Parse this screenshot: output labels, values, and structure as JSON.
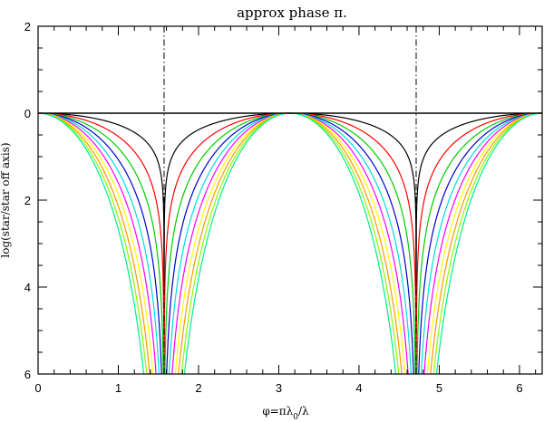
{
  "chart_data": {
    "type": "line",
    "title": "approx phase π.",
    "xlabel": "φ=πλ0/λ",
    "xlabel_parts": {
      "main": "φ=πλ",
      "sub": "0",
      "tail": "/λ"
    },
    "ylabel": "log(star/star off axis)",
    "xlim": [
      0,
      6.2832
    ],
    "ylim": [
      -6,
      2
    ],
    "x_ticks": [
      0,
      1,
      2,
      3,
      4,
      5,
      6
    ],
    "y_ticks": [
      2,
      0,
      -2,
      -4,
      -6
    ],
    "y_tick_labels": [
      "2",
      "0",
      "2",
      "4",
      "6"
    ],
    "x_tick_labels": [
      "0",
      "1",
      "2",
      "3",
      "4",
      "5",
      "6"
    ],
    "reference_lines": {
      "horizontal_y": 0,
      "vertical_x": [
        1.5708,
        4.7124
      ]
    },
    "series": [
      {
        "color": "#000000",
        "exponent": 1
      },
      {
        "color": "#ff0000",
        "exponent": 2
      },
      {
        "color": "#00cc00",
        "exponent": 3
      },
      {
        "color": "#0000cc",
        "exponent": 4
      },
      {
        "color": "#00dddd",
        "exponent": 5
      },
      {
        "color": "#ff00ff",
        "exponent": 6
      },
      {
        "color": "#ffff00",
        "exponent": 7
      },
      {
        "color": "#ff9900",
        "exponent": 8
      },
      {
        "color": "#88ff00",
        "exponent": 9
      },
      {
        "color": "#00ee88",
        "exponent": 10
      }
    ],
    "grid": false,
    "legend": "none"
  }
}
